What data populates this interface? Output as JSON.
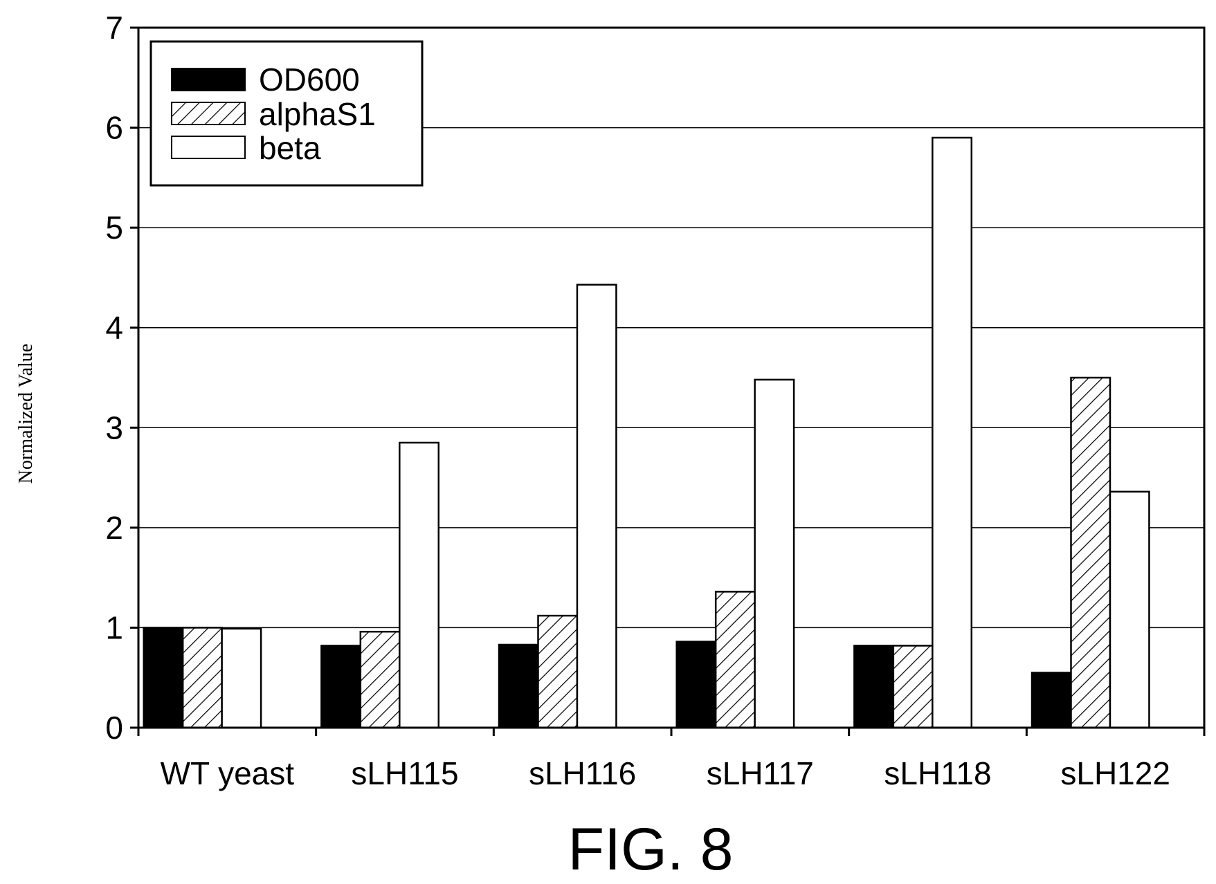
{
  "caption": "FIG. 8",
  "colors": {
    "od600": "#000000",
    "alphas1": "hatched",
    "beta": "#ffffff"
  },
  "chart_data": {
    "type": "bar",
    "xlabel": "",
    "ylabel": "Normalized Value",
    "ylim": [
      0,
      7
    ],
    "yticks": [
      "0",
      "1",
      "2",
      "3",
      "4",
      "5",
      "6",
      "7"
    ],
    "grid": true,
    "legend_position": "top-left",
    "categories": [
      "WT yeast",
      "sLH115",
      "sLH116",
      "sLH117",
      "sLH118",
      "sLH122"
    ],
    "series": [
      {
        "name": "OD600",
        "fill": "solid-black",
        "values": [
          1.0,
          0.82,
          0.83,
          0.86,
          0.82,
          0.55
        ]
      },
      {
        "name": "alphaS1",
        "fill": "diagonal-hatch",
        "values": [
          1.0,
          0.96,
          1.12,
          1.36,
          0.82,
          3.5
        ]
      },
      {
        "name": "beta",
        "fill": "white",
        "values": [
          0.99,
          2.85,
          4.43,
          3.48,
          5.9,
          2.36
        ]
      }
    ]
  }
}
